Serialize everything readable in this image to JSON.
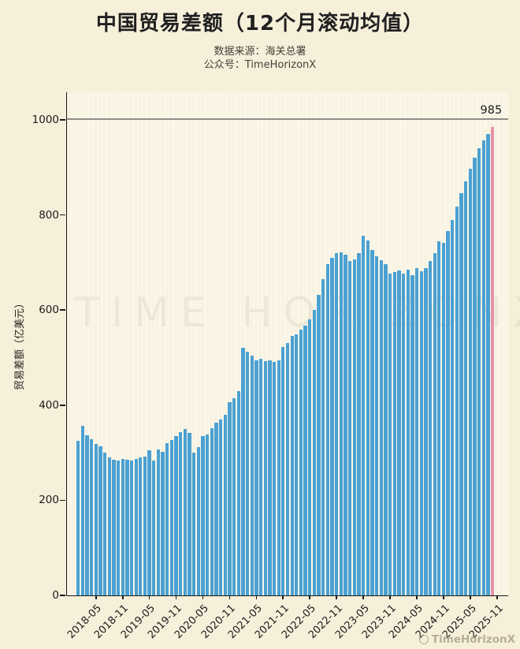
{
  "header": {
    "title": "中国贸易差额（12个月滚动均值）",
    "source_line": "数据来源：海关总署",
    "account_line": "公众号：TimeHorizonX"
  },
  "watermarks": {
    "plot_watermark": "TIME HORIZONX",
    "corner_watermark": "TimeHorizonX"
  },
  "chart_data": {
    "type": "bar",
    "title": "中国贸易差额（12个月滚动均值）",
    "ylabel": "贸易差额（亿美元）",
    "xlabel": "",
    "ylim": [
      0,
      1058
    ],
    "yticks": [
      0,
      200,
      400,
      600,
      800,
      1000
    ],
    "grid": false,
    "reference_line": {
      "y": 1000
    },
    "x_tick_labels": [
      "2018-05",
      "2018-11",
      "2019-05",
      "2019-11",
      "2020-05",
      "2020-11",
      "2021-05",
      "2021-11",
      "2022-05",
      "2022-11",
      "2023-05",
      "2023-11",
      "2024-05",
      "2024-11",
      "2025-05",
      "2025-11"
    ],
    "x_tick_bar_indices": [
      4,
      10,
      16,
      22,
      28,
      34,
      40,
      46,
      52,
      58,
      64,
      70,
      76,
      82,
      88,
      94
    ],
    "x_start_month": "2018-01",
    "x_end_month": "2025-10",
    "values": [
      325,
      356,
      336,
      328,
      318,
      314,
      300,
      291,
      285,
      283,
      287,
      285,
      284,
      287,
      290,
      292,
      305,
      283,
      307,
      302,
      320,
      327,
      335,
      343,
      350,
      342,
      301,
      312,
      335,
      338,
      351,
      364,
      370,
      380,
      406,
      414,
      429,
      520,
      512,
      504,
      495,
      498,
      492,
      495,
      491,
      494,
      523,
      531,
      545,
      549,
      559,
      568,
      580,
      600,
      632,
      665,
      697,
      710,
      720,
      722,
      716,
      704,
      707,
      720,
      757,
      746,
      727,
      713,
      705,
      697,
      677,
      680,
      683,
      677,
      685,
      674,
      688,
      681,
      689,
      703,
      719,
      744,
      742,
      766,
      790,
      818,
      845,
      870,
      898,
      920,
      940,
      957,
      970,
      985
    ],
    "highlight_index": 93,
    "annotation": {
      "text": "985",
      "value": 985,
      "bar_index": 93
    },
    "colors": {
      "bar": "#4ba1d1",
      "highlight_bar": "#e592a6",
      "background": "#f6efda",
      "plot_background": "#f9f3e2",
      "reference_line": "#8d8d87",
      "axis": "#1a1a1a"
    }
  }
}
